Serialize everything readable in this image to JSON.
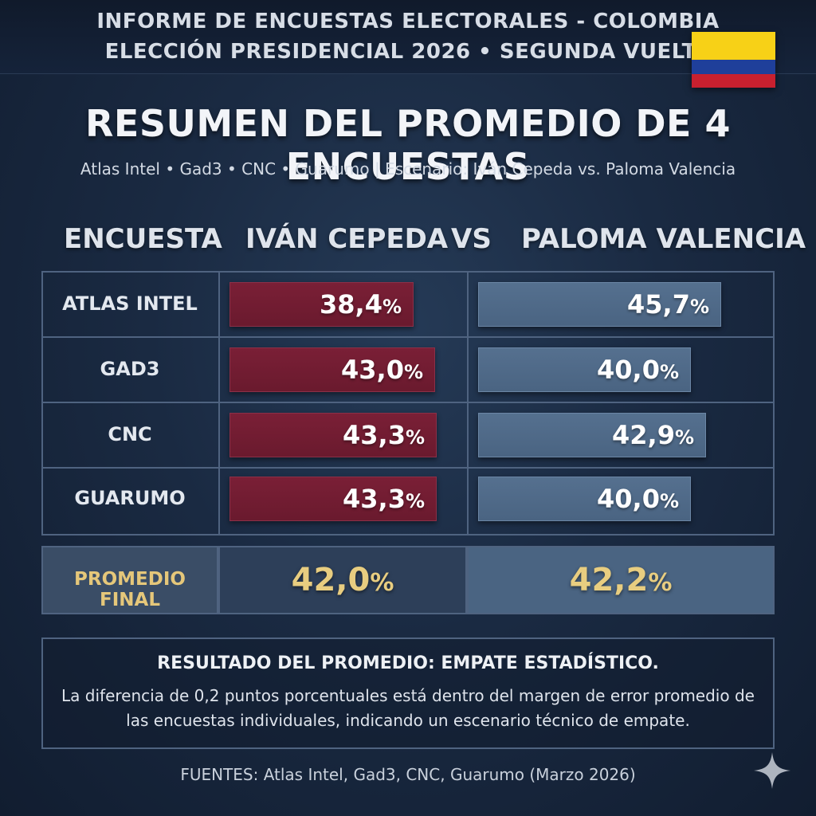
{
  "header": {
    "line1": "INFORME DE ENCUESTAS ELECTORALES - COLOMBIA",
    "line2": "ELECCIÓN PRESIDENCIAL 2026 • SEGUNDA VUELTA",
    "flag_icon": "colombia-flag-icon",
    "flag_colors": [
      "#f7d117",
      "#1f3f9a",
      "#c8202f"
    ]
  },
  "title": "RESUMEN DEL PROMEDIO DE 4 ENCUESTAS",
  "subtitle": "Atlas Intel • Gad3 • CNC • Guarumo | Escenario: Iván Cepeda vs. Paloma Valencia",
  "columns": {
    "poll": "ENCUESTA",
    "candidate_a": "IVÁN CEPEDA",
    "vs": "VS",
    "candidate_b": "PALOMA VALENCIA"
  },
  "colors": {
    "cepeda": "#7a1f36",
    "valencia": "#55708f",
    "accent_gold": "#e8cd80"
  },
  "chart_data": {
    "type": "bar",
    "categories": [
      "ATLAS INTEL",
      "GAD3",
      "CNC",
      "GUARUMO"
    ],
    "series": [
      {
        "name": "IVÁN CEPEDA",
        "values": [
          38.4,
          43.0,
          43.3,
          43.3
        ],
        "labels": [
          "38,4",
          "43,0",
          "43,3",
          "43,3"
        ]
      },
      {
        "name": "PALOMA VALENCIA",
        "values": [
          45.7,
          40.0,
          42.9,
          40.0
        ],
        "labels": [
          "45,7",
          "40,0",
          "42,9",
          "40,0"
        ]
      }
    ],
    "unit": "%",
    "average": {
      "label": "PROMEDIO FINAL",
      "values": [
        42.0,
        42.2
      ],
      "labels": [
        "42,0",
        "42,2"
      ]
    }
  },
  "note": {
    "title": "RESULTADO DEL PROMEDIO: EMPATE ESTADÍSTICO.",
    "body": "La diferencia de 0,2 puntos porcentuales está dentro del margen de error promedio de las encuestas individuales, indicando un escenario técnico de empate."
  },
  "sources": "FUENTES: Atlas Intel, Gad3, CNC, Guarumo (Marzo 2026)",
  "watermark_icon": "sparkle-icon"
}
